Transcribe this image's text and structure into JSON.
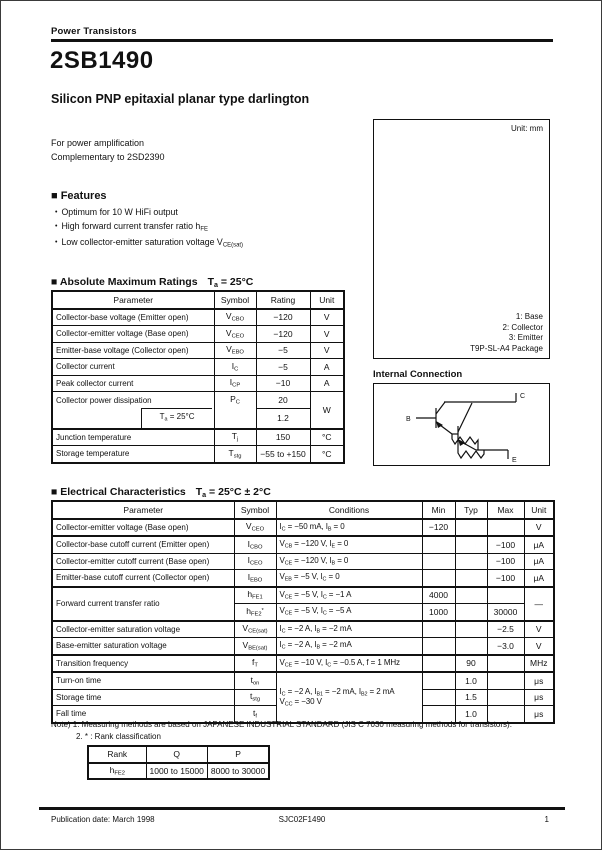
{
  "header": {
    "category": "Power Transistors",
    "part_number": "2SB1490",
    "subtitle": "Silicon PNP epitaxial planar type darlington"
  },
  "application": {
    "line1": "For power amplification",
    "line2": "Complementary to 2SD2390"
  },
  "features": {
    "heading": "■ Features",
    "bullet": "•",
    "items": [
      "Optimum for 10 W HiFi output",
      "High forward current transfer ratio h~FE~",
      "Low collector-emitter saturation voltage V~CE(sat)~"
    ]
  },
  "package_box": {
    "unit_label": "Unit: mm",
    "pins": [
      "1: Base",
      "2: Collector",
      "3: Emitter"
    ],
    "package_name": "T9P-SL-A4 Package"
  },
  "internal_connection": {
    "heading": "Internal Connection",
    "labels": {
      "b": "B",
      "c": "C",
      "e": "E"
    }
  },
  "abs_max": {
    "heading": "■ Absolute Maximum Ratings",
    "condition": "T~a~ = 25°C",
    "columns": [
      "Parameter",
      "Symbol",
      "Rating",
      "Unit"
    ],
    "rows": [
      {
        "c": [
          {
            "t": "Collector-base voltage (Emitter open)",
            "cl": "l"
          },
          {
            "t": "V~CBO~"
          },
          {
            "t": "−120"
          },
          {
            "t": "V"
          }
        ]
      },
      {
        "c": [
          {
            "t": "Collector-emitter voltage (Base open)",
            "cl": "l"
          },
          {
            "t": "V~CEO~"
          },
          {
            "t": "−120"
          },
          {
            "t": "V"
          }
        ]
      },
      {
        "c": [
          {
            "t": "Emitter-base voltage (Collector open)",
            "cl": "l"
          },
          {
            "t": "V~EBO~"
          },
          {
            "t": "−5"
          },
          {
            "t": "V"
          }
        ]
      },
      {
        "c": [
          {
            "t": "Collector current",
            "cl": "l"
          },
          {
            "t": "I~C~"
          },
          {
            "t": "−5"
          },
          {
            "t": "A"
          }
        ]
      },
      {
        "c": [
          {
            "t": "Peak collector current",
            "cl": "l"
          },
          {
            "t": "I~CP~"
          },
          {
            "t": "−10"
          },
          {
            "t": "A"
          }
        ]
      },
      {
        "c": [
          {
            "t": "Collector power dissipation",
            "cl": "l hb"
          },
          {
            "t": "P~C~",
            "cl": "hb"
          },
          {
            "t": "20"
          },
          {
            "t": "W",
            "rs": 2
          }
        ]
      },
      {
        "c": [
          {
            "t": "T~a~ = 25°C",
            "cl": "ht nopad",
            "box": true
          },
          {
            "t": "",
            "cl": "ht"
          },
          {
            "t": "1.2"
          }
        ]
      },
      {
        "cls": "sect",
        "c": [
          {
            "t": "Junction temperature",
            "cl": "l"
          },
          {
            "t": "T~j~"
          },
          {
            "t": "150"
          },
          {
            "t": "°C"
          }
        ]
      },
      {
        "c": [
          {
            "t": "Storage temperature",
            "cl": "l"
          },
          {
            "t": "T~stg~"
          },
          {
            "t": "−55 to +150"
          },
          {
            "t": "°C"
          }
        ]
      }
    ]
  },
  "elec": {
    "heading": "■ Electrical Characteristics",
    "condition": "T~a~ = 25°C ± 2°C",
    "columns": [
      "Parameter",
      "Symbol",
      "Conditions",
      "Min",
      "Typ",
      "Max",
      "Unit"
    ],
    "rows": [
      {
        "c": [
          {
            "t": "Collector-emitter voltage (Base open)",
            "cl": "l"
          },
          {
            "t": "V~CEO~"
          },
          {
            "t": "I~C~ = −50 mA, I~B~ = 0",
            "cl": "l cond"
          },
          {
            "t": "−120"
          },
          {
            "t": ""
          },
          {
            "t": ""
          },
          {
            "t": "V"
          }
        ]
      },
      {
        "cls": "sect",
        "c": [
          {
            "t": "Collector-base cutoff current (Emitter open)",
            "cl": "l"
          },
          {
            "t": "I~CBO~"
          },
          {
            "t": "V~CB~ = −120 V, I~E~ = 0",
            "cl": "l cond"
          },
          {
            "t": ""
          },
          {
            "t": ""
          },
          {
            "t": "−100"
          },
          {
            "t": "μA"
          }
        ]
      },
      {
        "c": [
          {
            "t": "Collector-emitter cutoff current (Base open)",
            "cl": "l"
          },
          {
            "t": "I~CEO~"
          },
          {
            "t": "V~CE~ = −120 V, I~B~ = 0",
            "cl": "l cond"
          },
          {
            "t": ""
          },
          {
            "t": ""
          },
          {
            "t": "−100"
          },
          {
            "t": "μA"
          }
        ]
      },
      {
        "c": [
          {
            "t": "Emitter-base cutoff current (Collector open)",
            "cl": "l"
          },
          {
            "t": "I~EBO~"
          },
          {
            "t": "V~EB~ = −5 V, I~C~ = 0",
            "cl": "l cond"
          },
          {
            "t": ""
          },
          {
            "t": ""
          },
          {
            "t": "−100"
          },
          {
            "t": "μA"
          }
        ]
      },
      {
        "cls": "sect",
        "c": [
          {
            "t": "Forward current transfer ratio",
            "cl": "l",
            "rs": 2
          },
          {
            "t": "h~FE1~"
          },
          {
            "t": "V~CE~ = −5 V, I~C~ = −1 A",
            "cl": "l cond"
          },
          {
            "t": "4000"
          },
          {
            "t": ""
          },
          {
            "t": ""
          },
          {
            "t": "—",
            "rs": 2
          }
        ]
      },
      {
        "c": [
          {
            "t": "h~FE2~^*^"
          },
          {
            "t": "V~CE~ = −5 V, I~C~ = −5 A",
            "cl": "l cond"
          },
          {
            "t": "1000"
          },
          {
            "t": ""
          },
          {
            "t": "30000"
          }
        ]
      },
      {
        "cls": "sect",
        "c": [
          {
            "t": "Collector-emitter saturation voltage",
            "cl": "l"
          },
          {
            "t": "V~CE(sat)~"
          },
          {
            "t": "I~C~ = −2 A, I~B~ = −2 mA",
            "cl": "l cond"
          },
          {
            "t": ""
          },
          {
            "t": ""
          },
          {
            "t": "−2.5"
          },
          {
            "t": "V"
          }
        ]
      },
      {
        "c": [
          {
            "t": "Base-emitter saturation voltage",
            "cl": "l"
          },
          {
            "t": "V~BE(sat)~"
          },
          {
            "t": "I~C~ = −2 A, I~B~ = −2 mA",
            "cl": "l cond"
          },
          {
            "t": ""
          },
          {
            "t": ""
          },
          {
            "t": "−3.0"
          },
          {
            "t": "V"
          }
        ]
      },
      {
        "cls": "sect",
        "c": [
          {
            "t": "Transition frequency",
            "cl": "l"
          },
          {
            "t": "f~T~"
          },
          {
            "t": "V~CE~ = −10 V, I~C~ = −0.5 A, f = 1 MHz",
            "cl": "l cond"
          },
          {
            "t": ""
          },
          {
            "t": "90"
          },
          {
            "t": ""
          },
          {
            "t": "MHz"
          }
        ]
      },
      {
        "cls": "sect",
        "c": [
          {
            "t": "Turn-on time",
            "cl": "l"
          },
          {
            "t": "t~on~"
          },
          {
            "t": "I~C~ = −2 A, I~B1~ = −2 mA, I~B2~ = 2 mA\nV~CC~ = −30 V",
            "cl": "l cond",
            "rs": 3
          },
          {
            "t": ""
          },
          {
            "t": "1.0"
          },
          {
            "t": ""
          },
          {
            "t": "μs"
          }
        ]
      },
      {
        "c": [
          {
            "t": "Storage time",
            "cl": "l"
          },
          {
            "t": "t~stg~"
          },
          {
            "t": ""
          },
          {
            "t": "1.5"
          },
          {
            "t": ""
          },
          {
            "t": "μs"
          }
        ]
      },
      {
        "c": [
          {
            "t": "Fall time",
            "cl": "l"
          },
          {
            "t": "t~f~"
          },
          {
            "t": ""
          },
          {
            "t": "1.0"
          },
          {
            "t": ""
          },
          {
            "t": "μs"
          }
        ]
      }
    ]
  },
  "notes": {
    "line1": "Note) 1. Measuring methods are based on JAPANESE INDUSTRIAL STANDARD (JIS C 7030 measuring methods for transistors).",
    "line2": "2. * : Rank classification"
  },
  "rank_table": {
    "columns": [
      "Rank",
      "Q",
      "P"
    ],
    "rows": [
      {
        "c": [
          {
            "t": "h~FE2~"
          },
          {
            "t": "1000 to 15000"
          },
          {
            "t": "8000 to 30000"
          }
        ]
      }
    ]
  },
  "footer": {
    "left": "Publication date: March 1998",
    "center": "SJC02F1490",
    "page": "1"
  }
}
